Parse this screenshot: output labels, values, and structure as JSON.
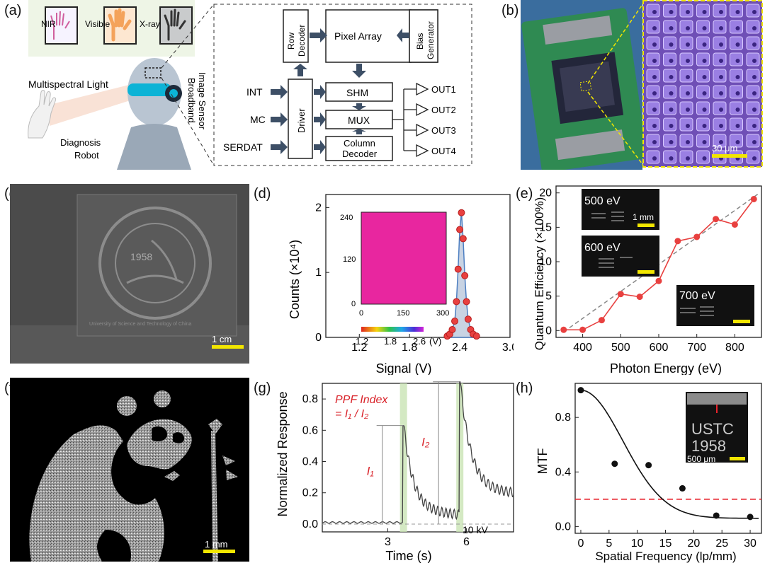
{
  "panel_labels": [
    "(a)",
    "(b)",
    "(c)",
    "(d)",
    "(e)",
    "(f)",
    "(g)",
    "(h)"
  ],
  "panel_a": {
    "spectra": [
      "NIR",
      "Visible",
      "X-ray"
    ],
    "multispectral_light": "Multispectral Light",
    "robot_line1": "Diagnosis",
    "robot_line2": "Robot",
    "sensor_line1": "Broadband",
    "sensor_line2": "Image Sensor",
    "blocks": {
      "row_decoder_1": "Row",
      "row_decoder_2": "Decoder",
      "pixel_array": "Pixel Array",
      "bias_1": "Bias",
      "bias_2": "Generator",
      "driver": "Driver",
      "shm": "SHM",
      "mux": "MUX",
      "column_1": "Column",
      "column_2": "Decoder"
    },
    "inputs": [
      "INT",
      "MC",
      "SERDAT"
    ],
    "outputs": [
      "OUT1",
      "OUT2",
      "OUT3",
      "OUT4"
    ],
    "colors": {
      "arrow": "#3d4f66",
      "panel_bg": "#eef5e6",
      "robot": "#a9b8c8",
      "visor": "#0bb3d6"
    }
  },
  "panel_b": {
    "scale_bar": "30 μm",
    "colors": {
      "pcb": "#2f8a52",
      "pixel": "#7a52c8",
      "zoom_border": "#f2e600"
    }
  },
  "panel_c": {
    "scale_bar": "1 cm",
    "emblem_year": "1958",
    "emblem_text": "University of Science and Technology of China"
  },
  "panel_d": {
    "chart_data": {
      "type": "histogram",
      "xlabel": "Signal (V)",
      "ylabel": "Counts (×10⁴)",
      "xlim": [
        0.8,
        3.0
      ],
      "ylim": [
        0,
        2.2
      ],
      "xticks": [
        "1.2",
        "1.8",
        "2.4",
        "3.0"
      ],
      "yticks": [
        "0",
        "1",
        "2"
      ],
      "fit_peak": 2.4,
      "points": [
        [
          2.25,
          0.02
        ],
        [
          2.28,
          0.05
        ],
        [
          2.31,
          0.12
        ],
        [
          2.34,
          0.25
        ],
        [
          2.36,
          0.55
        ],
        [
          2.38,
          1.05
        ],
        [
          2.4,
          1.66
        ],
        [
          2.42,
          1.92
        ],
        [
          2.44,
          1.52
        ],
        [
          2.46,
          0.95
        ],
        [
          2.48,
          0.55
        ],
        [
          2.5,
          0.28
        ],
        [
          2.53,
          0.12
        ],
        [
          2.56,
          0.05
        ],
        [
          2.6,
          0.02
        ]
      ],
      "inset": {
        "yticks": [
          "0",
          "120",
          "240"
        ],
        "xticks": [
          "0",
          "150",
          "300"
        ],
        "colorbar_ticks": [
          "1.2",
          "1.8",
          "2.6"
        ],
        "colorbar_unit": "(V)"
      },
      "colors": {
        "points": "#e8403f",
        "fill": "#4d7fc2"
      }
    }
  },
  "panel_e": {
    "chart_data": {
      "type": "line",
      "xlabel": "Photon Energy (eV)",
      "ylabel": "Quantum Efficiency (×100%)",
      "xlim": [
        330,
        870
      ],
      "ylim": [
        -1,
        21
      ],
      "xticks": [
        "400",
        "500",
        "600",
        "700",
        "800"
      ],
      "yticks": [
        "0",
        "5",
        "10",
        "15",
        "20"
      ],
      "x": [
        350,
        400,
        450,
        500,
        550,
        600,
        650,
        700,
        750,
        800,
        850
      ],
      "y": [
        0.1,
        0.1,
        1.5,
        5.3,
        4.9,
        7.2,
        13.0,
        13.6,
        16.2,
        15.4,
        19.1
      ],
      "fit": [
        [
          350,
          -0.2
        ],
        [
          860,
          19.8
        ]
      ],
      "insets": [
        {
          "label": "500 eV",
          "scale": "1 mm"
        },
        {
          "label": "600 eV"
        },
        {
          "label": "700 eV"
        }
      ],
      "colors": {
        "line": "#e8403f",
        "fit": "#888888"
      }
    }
  },
  "panel_f": {
    "scale_bar": "1 mm"
  },
  "panel_g": {
    "chart_data": {
      "type": "line",
      "xlabel": "Time (s)",
      "ylabel": "Normalized Response",
      "xlim": [
        0.5,
        7.8
      ],
      "ylim": [
        -0.05,
        0.9
      ],
      "xticks": [
        "3",
        "6"
      ],
      "yticks": [
        "0.0",
        "0.2",
        "0.4",
        "0.6",
        "0.8"
      ],
      "annotation_title": "PPF Index",
      "annotation_eq": "= I₁ / I₂",
      "i1_label": "I₁",
      "i2_label": "I₂",
      "voltage": "10 kV",
      "pulse1": 3.6,
      "pulse2": 5.75,
      "peak1": 0.63,
      "peak2": 0.91,
      "colors": {
        "trace": "#444444",
        "shade": "#c9e3b4",
        "text": "#d9232a"
      }
    }
  },
  "panel_h": {
    "chart_data": {
      "type": "scatter",
      "xlabel": "Spatial Frequency (lp/mm)",
      "ylabel": "MTF",
      "xlim": [
        -1,
        32
      ],
      "ylim": [
        -0.05,
        1.05
      ],
      "xticks": [
        "0",
        "5",
        "10",
        "15",
        "20",
        "25",
        "30"
      ],
      "yticks": [
        "0.0",
        "0.4",
        "0.8"
      ],
      "x": [
        0,
        6,
        12,
        18,
        24,
        30
      ],
      "y": [
        1.0,
        0.46,
        0.45,
        0.28,
        0.08,
        0.07
      ],
      "threshold": 0.2,
      "inset": {
        "text1": "USTC",
        "text2": "1958",
        "scale": "500 μm"
      },
      "colors": {
        "threshold": "#e8222b",
        "points": "#111111"
      }
    }
  }
}
